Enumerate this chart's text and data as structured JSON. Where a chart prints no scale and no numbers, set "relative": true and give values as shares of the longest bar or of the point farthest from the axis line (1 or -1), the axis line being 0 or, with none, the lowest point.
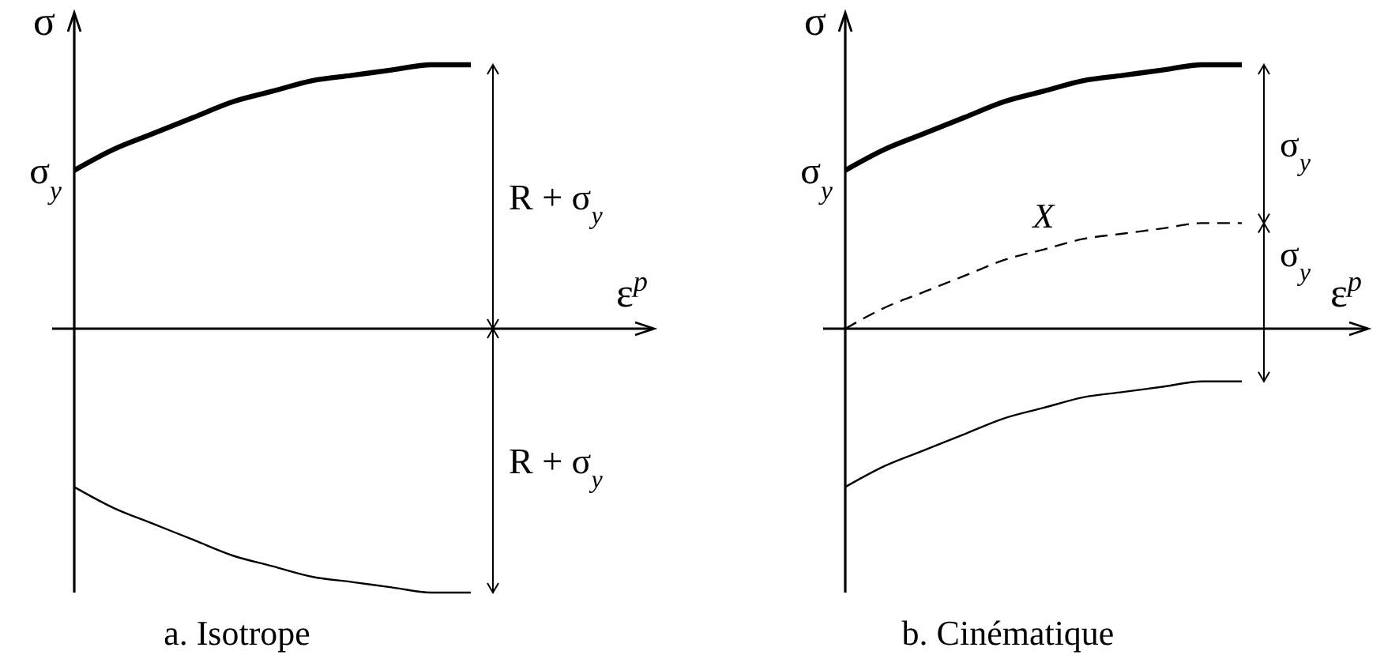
{
  "chart_data": [
    {
      "type": "line",
      "relative": true,
      "title": "a. Isotrope",
      "xlabel": "ε$^{p}$",
      "ylabel": "σ",
      "categories": [
        null,
        null,
        null,
        null,
        null,
        null,
        null,
        null,
        null,
        null,
        null
      ],
      "series": [
        {
          "color": "#000000",
          "values": [
            0.6,
            0.68,
            0.74,
            0.8,
            0.86,
            0.9,
            0.94,
            0.96,
            0.98,
            1.0,
            1.0
          ]
        },
        {
          "color": "#000000",
          "values": [
            -0.6,
            -0.68,
            -0.74,
            -0.8,
            -0.86,
            -0.9,
            -0.94,
            -0.96,
            -0.98,
            -1.0,
            -1.0
          ]
        }
      ],
      "annotations": [
        "σ$_{y}$",
        "R + σ$_{y}$",
        "R + σ$_{y}$"
      ]
    },
    {
      "type": "line",
      "relative": true,
      "title": "b. Cinématique",
      "xlabel": "ε$^{p}$",
      "ylabel": "σ",
      "categories": [
        null,
        null,
        null,
        null,
        null,
        null,
        null,
        null,
        null,
        null,
        null
      ],
      "series": [
        {
          "color": "#000000",
          "values": [
            0.6,
            0.68,
            0.74,
            0.8,
            0.86,
            0.9,
            0.94,
            0.96,
            0.98,
            1.0,
            1.0
          ]
        },
        {
          "name": "X",
          "color": "#000000",
          "line_style": "dashed",
          "values": [
            0,
            0.08,
            0.14,
            0.2,
            0.26,
            0.3,
            0.34,
            0.36,
            0.38,
            0.4,
            0.4
          ]
        },
        {
          "color": "#000000",
          "values": [
            -0.6,
            -0.52,
            -0.46,
            -0.4,
            -0.34,
            -0.3,
            -0.26,
            -0.24,
            -0.22,
            -0.2,
            -0.2
          ]
        }
      ],
      "annotations": [
        "σ$_{y}$",
        "σ$_{y}$",
        "σ$_{y}$"
      ]
    }
  ]
}
